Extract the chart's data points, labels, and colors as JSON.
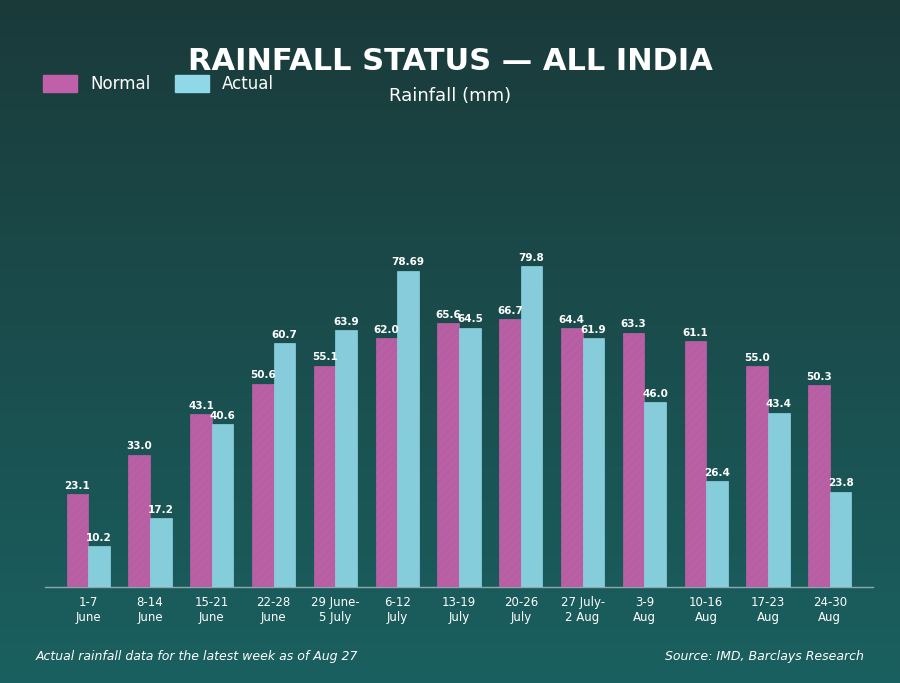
{
  "title": "RAINFALL STATUS — ALL INDIA",
  "subtitle": "Rainfall (mm)",
  "categories": [
    "1-7\nJune",
    "8-14\nJune",
    "15-21\nJune",
    "22-28\nJune",
    "29 June-\n5 July",
    "6-12\nJuly",
    "13-19\nJuly",
    "20-26\nJuly",
    "27 July-\n2 Aug",
    "3-9\nAug",
    "10-16\nAug",
    "17-23\nAug",
    "24-30\nAug"
  ],
  "normal": [
    23.1,
    33.0,
    43.1,
    50.6,
    55.1,
    62.0,
    65.6,
    66.7,
    64.4,
    63.3,
    61.1,
    55.0,
    50.3
  ],
  "actual": [
    10.2,
    17.2,
    40.6,
    60.7,
    63.9,
    78.69,
    64.5,
    79.8,
    61.9,
    46.0,
    26.4,
    43.4,
    23.8
  ],
  "normal_color": "#C060A8",
  "actual_color": "#90D8E8",
  "bg_color_top": "#1a3a3a",
  "bg_color_bottom": "#1a5050",
  "title_color": "#FFFFFF",
  "subtitle_color": "#FFFFFF",
  "label_color": "#FFFFFF",
  "footer_left": "Actual rainfall data for the latest week as of Aug 27",
  "footer_right": "Source: IMD, Barclays Research",
  "ylim": [
    0,
    95
  ]
}
